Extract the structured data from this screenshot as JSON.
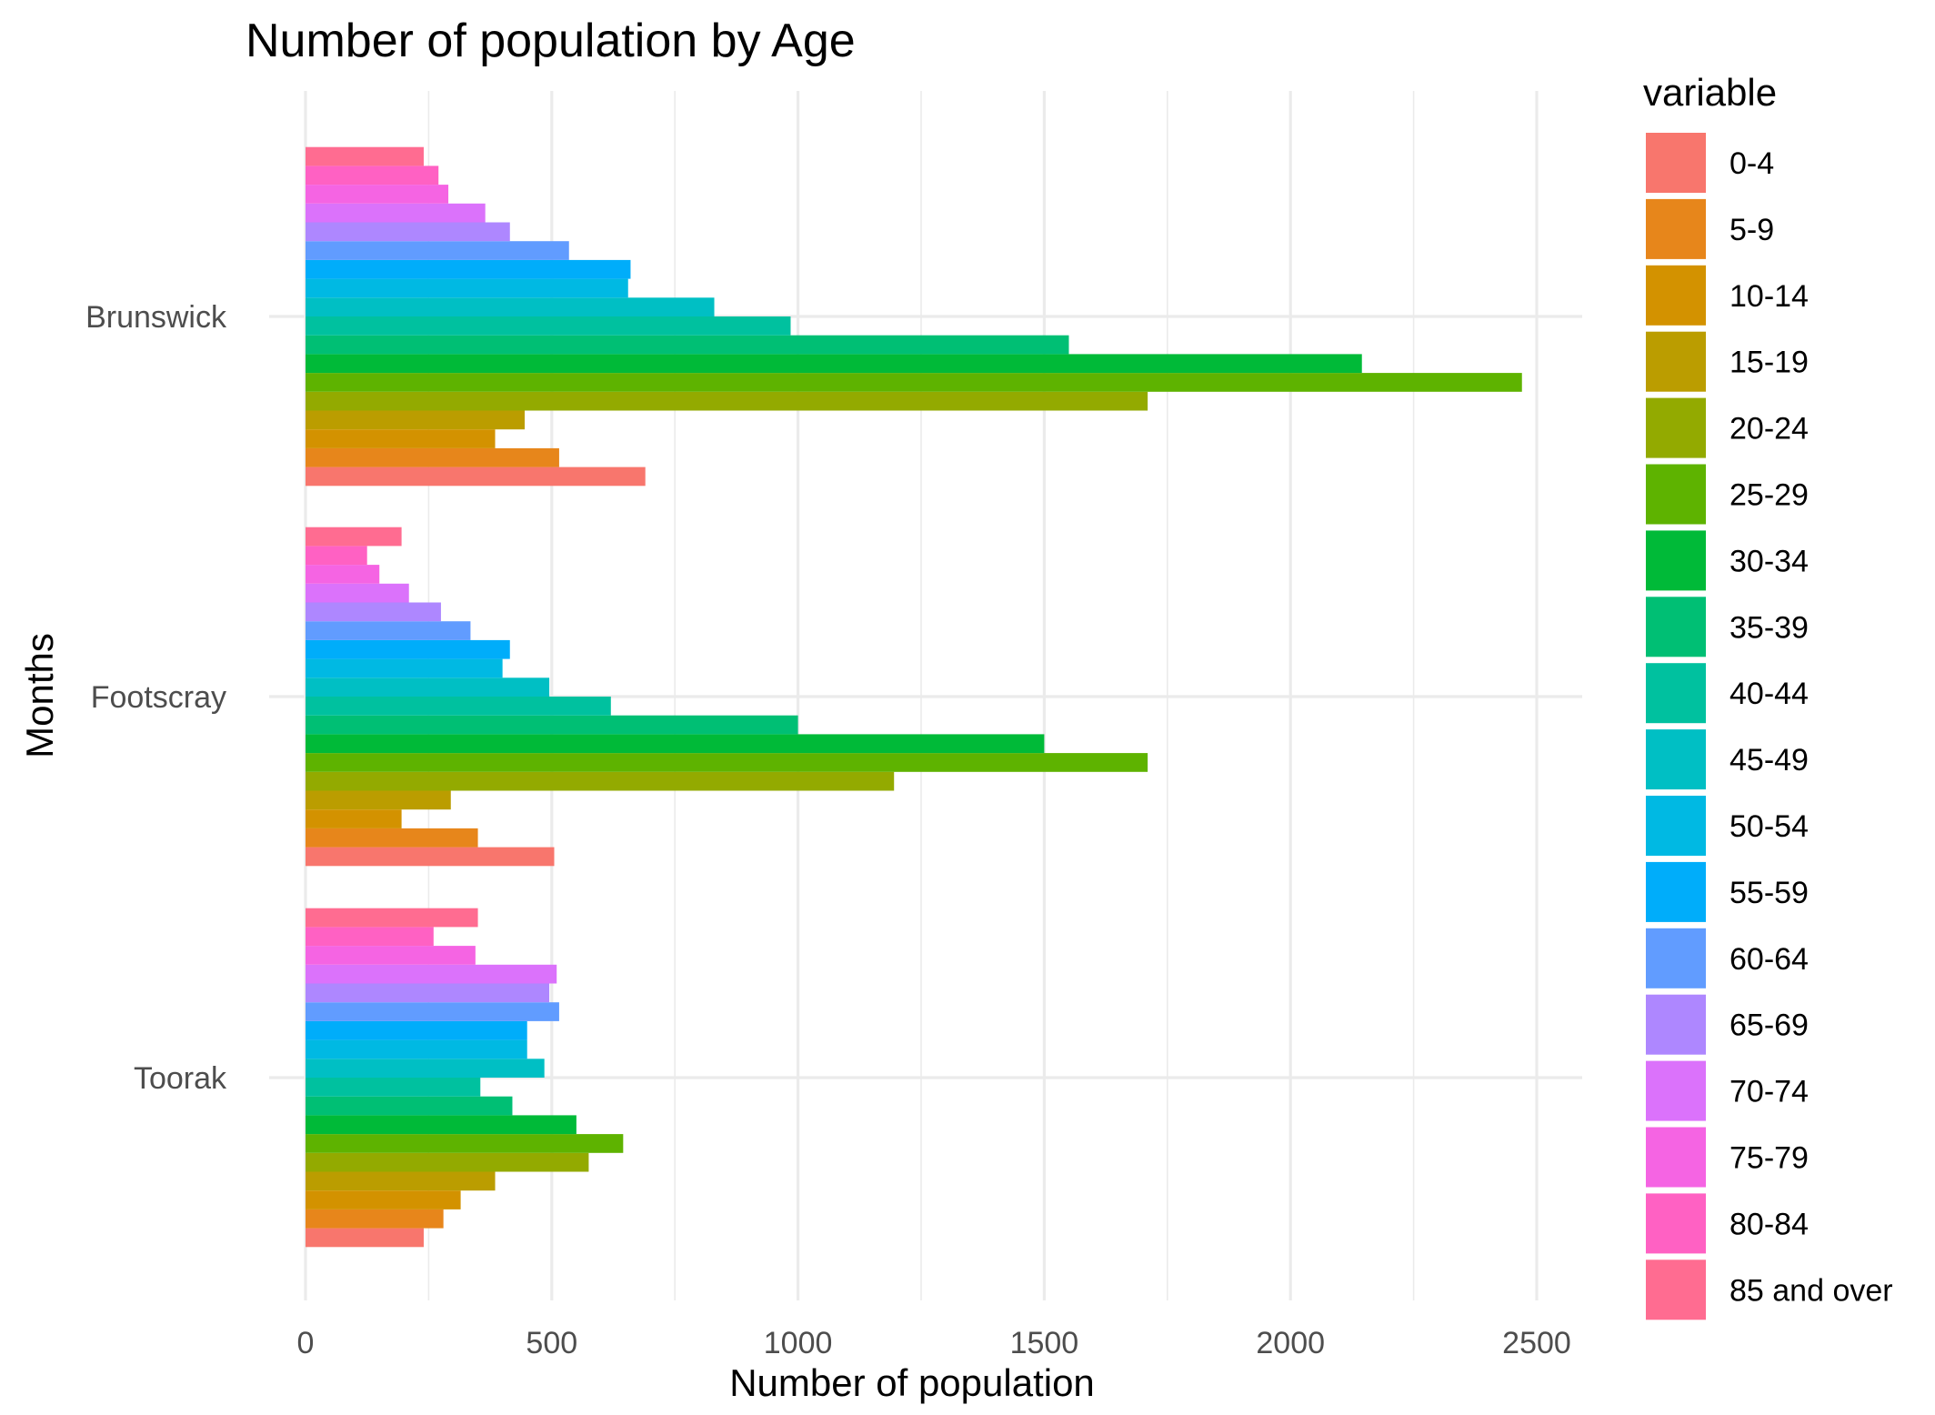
{
  "chart_data": {
    "type": "bar",
    "orientation": "horizontal",
    "title": "Number of population by Age",
    "xlabel": "Number of population",
    "ylabel": "Months",
    "xlim": [
      0,
      2600
    ],
    "xticks": [
      0,
      500,
      1000,
      1500,
      2000,
      2500
    ],
    "xtick_labels": [
      "0",
      "500",
      "1000",
      "1500",
      "2000",
      "2500"
    ],
    "categories": [
      "Brunswick",
      "Footscray",
      "Toorak"
    ],
    "grid": true,
    "legend": {
      "title": "variable",
      "position": "right"
    },
    "series": [
      {
        "name": "0-4",
        "color": "#F8766D",
        "values": [
          690,
          505,
          240
        ]
      },
      {
        "name": "5-9",
        "color": "#E7861B",
        "values": [
          515,
          350,
          280
        ]
      },
      {
        "name": "10-14",
        "color": "#D39200",
        "values": [
          385,
          195,
          315
        ]
      },
      {
        "name": "15-19",
        "color": "#BB9D00",
        "values": [
          445,
          295,
          385
        ]
      },
      {
        "name": "20-24",
        "color": "#93AA00",
        "values": [
          1710,
          1195,
          575
        ]
      },
      {
        "name": "25-29",
        "color": "#5EB300",
        "values": [
          2470,
          1710,
          645
        ]
      },
      {
        "name": "30-34",
        "color": "#00BA38",
        "values": [
          2145,
          1500,
          550
        ]
      },
      {
        "name": "35-39",
        "color": "#00BF74",
        "values": [
          1550,
          1000,
          420
        ]
      },
      {
        "name": "40-44",
        "color": "#00C19F",
        "values": [
          985,
          620,
          355
        ]
      },
      {
        "name": "45-49",
        "color": "#00BFC4",
        "values": [
          830,
          495,
          485
        ]
      },
      {
        "name": "50-54",
        "color": "#00B9E3",
        "values": [
          655,
          400,
          450
        ]
      },
      {
        "name": "55-59",
        "color": "#00ADFA",
        "values": [
          660,
          415,
          450
        ]
      },
      {
        "name": "60-64",
        "color": "#619CFF",
        "values": [
          535,
          335,
          515
        ]
      },
      {
        "name": "65-69",
        "color": "#AE87FF",
        "values": [
          415,
          275,
          495
        ]
      },
      {
        "name": "70-74",
        "color": "#DB72FB",
        "values": [
          365,
          210,
          510
        ]
      },
      {
        "name": "75-79",
        "color": "#F564E3",
        "values": [
          290,
          150,
          345
        ]
      },
      {
        "name": "80-84",
        "color": "#FF61C3",
        "values": [
          270,
          125,
          260
        ]
      },
      {
        "name": "85 and over",
        "color": "#FF6C91",
        "values": [
          240,
          195,
          350
        ]
      }
    ]
  }
}
